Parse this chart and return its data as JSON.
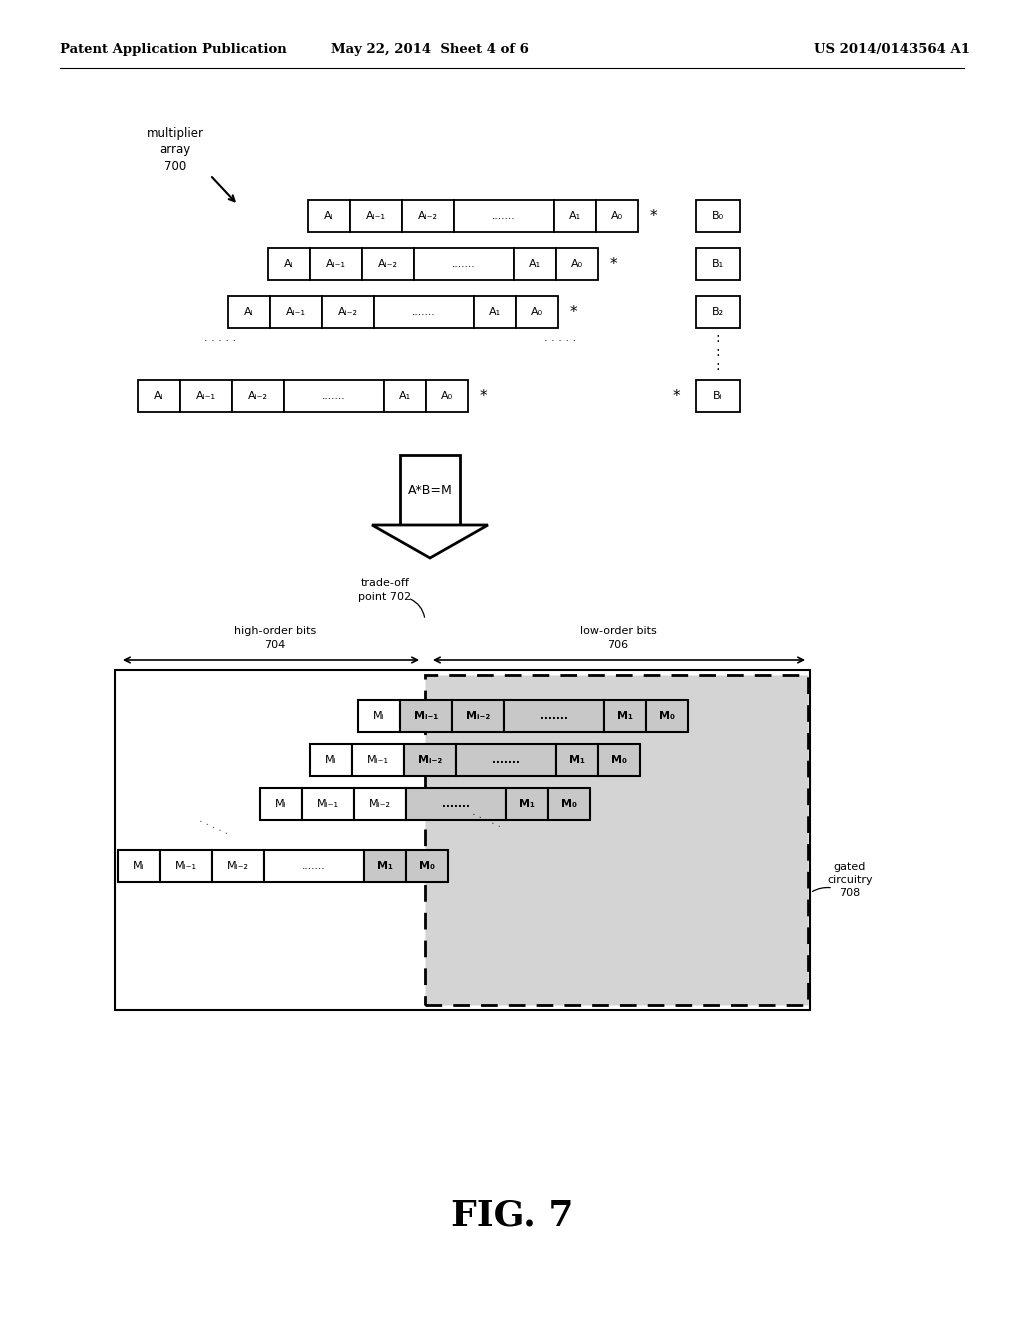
{
  "header_left": "Patent Application Publication",
  "header_mid": "May 22, 2014  Sheet 4 of 6",
  "header_right": "US 2014/0143564 A1",
  "fig_label": "FIG. 7",
  "label_multiplier_array": "multiplier\narray\n700",
  "label_tradeoff": "trade-off\npoint 702",
  "label_high_order": "high-order bits\n704",
  "label_low_order": "low-order bits\n706",
  "label_gated": "gated\ncircuitry\n708",
  "arrow_label": "A*B=M",
  "bg_color": "#ffffff"
}
